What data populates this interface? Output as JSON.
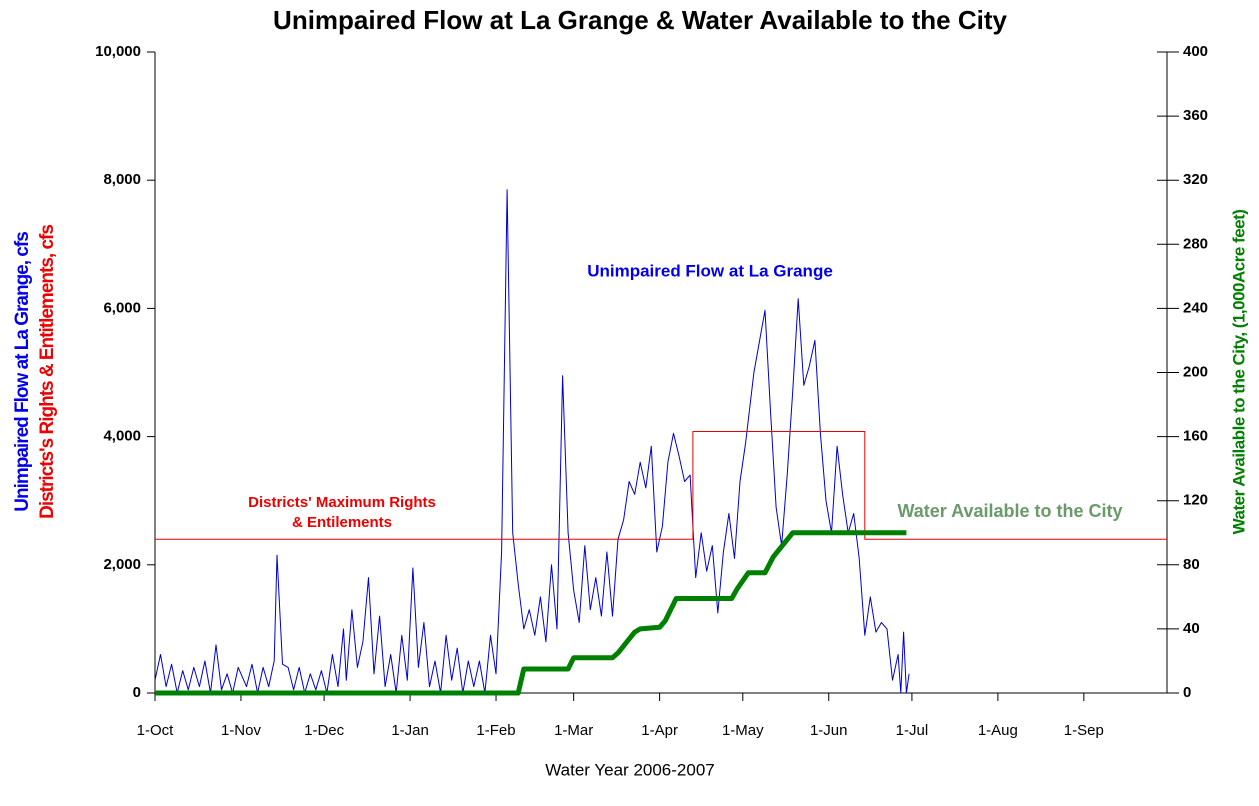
{
  "chart_data": {
    "type": "line",
    "title": "Unimpaired Flow at La Grange & Water Available to the City",
    "x_label": "Water Year 2006-2007",
    "y_labels": [
      "Unimpaired Flow at La Grange, cfs",
      "Districts's Rights & Entitlements, cfs"
    ],
    "y2_label": "Water Available to the City, (1,000Acre feet)",
    "annotations": [
      "Unimpaired Flow at La Grange",
      "Districts' Maximum Rights",
      "& Entilements",
      "Water Available to the City"
    ],
    "xlim": [
      0,
      365
    ],
    "xticks": [
      {
        "value": 0,
        "label": "1-Oct"
      },
      {
        "value": 31,
        "label": "1-Nov"
      },
      {
        "value": 61,
        "label": "1-Dec"
      },
      {
        "value": 92,
        "label": "1-Jan"
      },
      {
        "value": 123,
        "label": "1-Feb"
      },
      {
        "value": 151,
        "label": "1-Mar"
      },
      {
        "value": 182,
        "label": "1-Apr"
      },
      {
        "value": 212,
        "label": "1-May"
      },
      {
        "value": 243,
        "label": "1-Jun"
      },
      {
        "value": 273,
        "label": "1-Jul"
      },
      {
        "value": 304,
        "label": "1-Aug"
      },
      {
        "value": 335,
        "label": "1-Sep"
      }
    ],
    "ylim": [
      0,
      10000
    ],
    "yticks": [
      0,
      {
        "value": 2000,
        "label": "2,000"
      },
      {
        "value": 4000,
        "label": "4,000"
      },
      {
        "value": 6000,
        "label": "6,000"
      },
      {
        "value": 8000,
        "label": "8,000"
      },
      {
        "value": 10000,
        "label": "10,000"
      }
    ],
    "y2lim": [
      0,
      400
    ],
    "y2ticks": [
      0,
      40,
      80,
      120,
      160,
      200,
      240,
      280,
      320,
      360,
      400
    ],
    "series": [
      {
        "name": "Unimpaired Flow at La Grange",
        "color": "#0000cc",
        "width": 1,
        "x": [
          0,
          2,
          4,
          6,
          8,
          10,
          12,
          14,
          16,
          18,
          20,
          22,
          24,
          26,
          28,
          30,
          33,
          35,
          37,
          39,
          41,
          43,
          44,
          46,
          48,
          50,
          52,
          54,
          56,
          58,
          60,
          62,
          64,
          66,
          68,
          69,
          71,
          73,
          75,
          77,
          79,
          81,
          83,
          85,
          87,
          89,
          91,
          93,
          95,
          97,
          99,
          101,
          103,
          105,
          107,
          109,
          111,
          113,
          115,
          117,
          119,
          121,
          123,
          125,
          127,
          129,
          131,
          133,
          135,
          137,
          139,
          141,
          143,
          145,
          147,
          149,
          151,
          153,
          155,
          157,
          159,
          161,
          163,
          165,
          167,
          169,
          171,
          173,
          175,
          177,
          179,
          181,
          183,
          185,
          187,
          189,
          191,
          193,
          195,
          197,
          199,
          201,
          203,
          205,
          207,
          209,
          211,
          213,
          216,
          220,
          222,
          224,
          226,
          228,
          230,
          232,
          234,
          236,
          238,
          240,
          242,
          244,
          246,
          248,
          250,
          252,
          254,
          256,
          258,
          260,
          262,
          264,
          266,
          268,
          269,
          270,
          271,
          272
        ],
        "values": [
          200,
          600,
          100,
          450,
          0,
          350,
          50,
          400,
          100,
          500,
          0,
          750,
          50,
          300,
          0,
          400,
          100,
          450,
          0,
          400,
          100,
          500,
          2150,
          450,
          400,
          50,
          400,
          0,
          300,
          50,
          350,
          0,
          600,
          100,
          1000,
          200,
          1300,
          400,
          800,
          1800,
          300,
          1200,
          100,
          600,
          0,
          900,
          200,
          1950,
          400,
          1100,
          100,
          500,
          0,
          900,
          200,
          700,
          0,
          500,
          100,
          500,
          0,
          900,
          300,
          2200,
          7850,
          2500,
          1700,
          1000,
          1300,
          900,
          1500,
          800,
          2000,
          1000,
          4950,
          2500,
          1600,
          1100,
          2300,
          1300,
          1800,
          1200,
          2200,
          1200,
          2400,
          2700,
          3300,
          3100,
          3600,
          3200,
          3850,
          2200,
          2600,
          3600,
          4050,
          3700,
          3300,
          3400,
          1800,
          2500,
          1900,
          2300,
          1250,
          2200,
          2800,
          2100,
          3300,
          3900,
          5000,
          5970,
          4400,
          2900,
          2300,
          3400,
          4700,
          6150,
          4800,
          5100,
          5500,
          4050,
          3000,
          2500,
          3850,
          3100,
          2500,
          2800,
          2100,
          900,
          1500,
          950,
          1100,
          1000,
          200,
          600,
          0,
          950,
          0,
          300
        ]
      },
      {
        "name": "Districts' Maximum Rights & Entilements",
        "color": "#ee0000",
        "width": 1,
        "x": [
          0,
          194,
          194,
          256,
          256,
          365
        ],
        "values": [
          2400,
          2400,
          4080,
          4080,
          2400,
          2400
        ]
      },
      {
        "name": "Water Available to the City",
        "color": "#008000",
        "width": 5,
        "axis": "y2",
        "x": [
          0,
          131,
          133,
          149,
          151,
          165,
          167,
          173,
          175,
          182,
          184,
          188,
          190,
          208,
          210,
          214,
          216,
          220,
          223,
          230,
          232,
          271
        ],
        "values": [
          0,
          0,
          15,
          15,
          22,
          22,
          25,
          38,
          40,
          41,
          45,
          59,
          59,
          59,
          65,
          75,
          75,
          75,
          85,
          100,
          100,
          100
        ]
      }
    ]
  }
}
